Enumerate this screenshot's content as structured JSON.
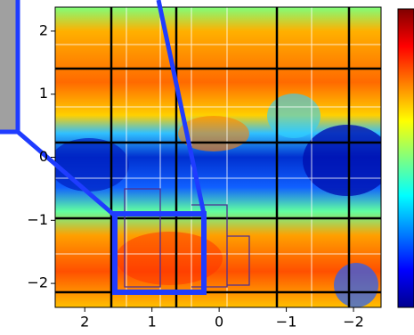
{
  "chart_data": {
    "type": "heatmap",
    "colormap": "jet",
    "xlim": [
      2.44,
      -2.41
    ],
    "ylim": [
      -2.38,
      2.38
    ],
    "xticks": [
      2,
      1,
      0,
      {
        "value": -1,
        "label": "−1"
      },
      {
        "value": -2,
        "label": "−2"
      }
    ],
    "yticks": [
      2,
      1,
      0,
      {
        "value": -1,
        "label": "−1"
      },
      {
        "value": -2,
        "label": "−2"
      }
    ],
    "colorbar": true
  }
}
